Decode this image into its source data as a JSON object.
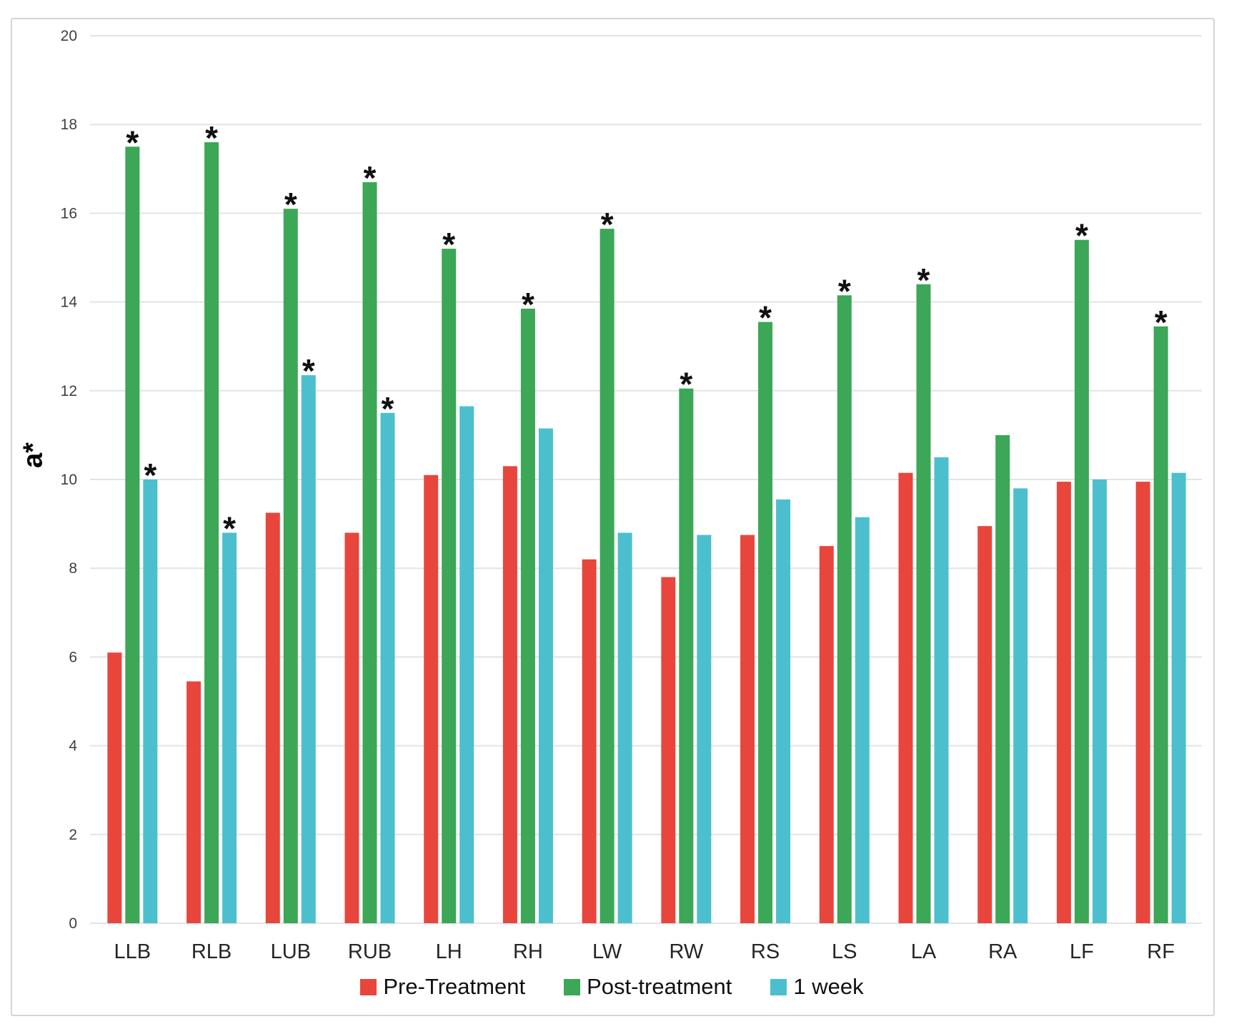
{
  "chart_data": {
    "type": "bar",
    "title": "",
    "xlabel": "",
    "ylabel": "a*",
    "ylim": [
      0,
      20
    ],
    "ytick_step": 2,
    "grid": true,
    "legend_position": "bottom",
    "significance_marker": "*",
    "categories": [
      "LLB",
      "RLB",
      "LUB",
      "RUB",
      "LH",
      "RH",
      "LW",
      "RW",
      "RS",
      "LS",
      "LA",
      "RA",
      "LF",
      "RF"
    ],
    "series": [
      {
        "name": "Pre-Treatment",
        "color": "#e8463c",
        "values": [
          6.1,
          5.45,
          9.25,
          8.8,
          10.1,
          10.3,
          8.2,
          7.8,
          8.75,
          8.5,
          10.15,
          8.95,
          9.95,
          9.95
        ],
        "sig": [
          false,
          false,
          false,
          false,
          false,
          false,
          false,
          false,
          false,
          false,
          false,
          false,
          false,
          false
        ]
      },
      {
        "name": "Post-treatment",
        "color": "#3ba757",
        "values": [
          17.5,
          17.6,
          16.1,
          16.7,
          15.2,
          13.85,
          15.65,
          12.05,
          13.55,
          14.15,
          14.4,
          11.0,
          15.4,
          13.45
        ],
        "sig": [
          true,
          true,
          true,
          true,
          true,
          true,
          true,
          true,
          true,
          true,
          true,
          false,
          true,
          true
        ]
      },
      {
        "name": "1 week",
        "color": "#4cbfce",
        "values": [
          10.0,
          8.8,
          12.35,
          11.5,
          11.65,
          11.15,
          8.8,
          8.75,
          9.55,
          9.15,
          10.5,
          9.8,
          10.0,
          10.15
        ],
        "sig": [
          true,
          true,
          true,
          true,
          false,
          false,
          false,
          false,
          false,
          false,
          false,
          false,
          false,
          false
        ]
      }
    ],
    "colors": {
      "gridline": "#e3e3e3",
      "tick_text": "#3f3f3f",
      "category_text": "#262626",
      "marker": "#111111"
    }
  }
}
